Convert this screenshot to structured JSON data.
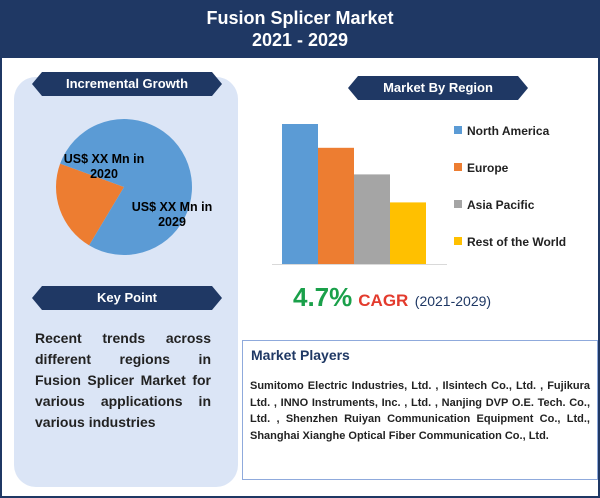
{
  "header": {
    "title": "Fusion Splicer Market",
    "years": "2021 - 2029"
  },
  "incremental_growth": {
    "label": "Incremental Growth",
    "slice_2020_label": "US$ XX Mn in 2020",
    "slice_2029_label": "US$ XX Mn in 2029"
  },
  "key_point": {
    "label": "Key Point",
    "text": "Recent trends across different regions in Fusion Splicer Market for various applications in various industries"
  },
  "market_by_region": {
    "label": "Market By Region"
  },
  "cagr": {
    "value": "4.7%",
    "label": "CAGR",
    "period": "(2021-2029)"
  },
  "market_players": {
    "title": "Market Players",
    "text": "Sumitomo Electric Industries, Ltd. , Ilsintech Co., Ltd. , Fujikura Ltd. , INNO Instruments, Inc. , Ltd. , Nanjing DVP O.E. Tech. Co., Ltd. , Shenzhen Ruiyan Communication Equipment Co., Ltd., Shanghai Xianghe Optical Fiber Communication Co., Ltd."
  },
  "colors": {
    "navy": "#1f3864",
    "north_america": "#5b9bd5",
    "europe": "#ed7d31",
    "asia_pacific": "#a5a5a5",
    "rest_of_world": "#ffc000",
    "cagr_green": "#1aa04a",
    "cagr_red": "#e33b2d"
  },
  "chart_data": [
    {
      "type": "pie",
      "slices": [
        {
          "label": "US$ XX Mn in 2020",
          "value": 22,
          "color": "#ed7d31"
        },
        {
          "label": "US$ XX Mn in 2029",
          "value": 78,
          "color": "#5b9bd5"
        }
      ]
    },
    {
      "type": "bar",
      "categories": [
        "North America",
        "Europe",
        "Asia Pacific",
        "Rest of the World"
      ],
      "values": [
        100,
        83,
        64,
        44
      ],
      "colors": [
        "#5b9bd5",
        "#ed7d31",
        "#a5a5a5",
        "#ffc000"
      ],
      "legend": "right",
      "grid": false
    }
  ]
}
